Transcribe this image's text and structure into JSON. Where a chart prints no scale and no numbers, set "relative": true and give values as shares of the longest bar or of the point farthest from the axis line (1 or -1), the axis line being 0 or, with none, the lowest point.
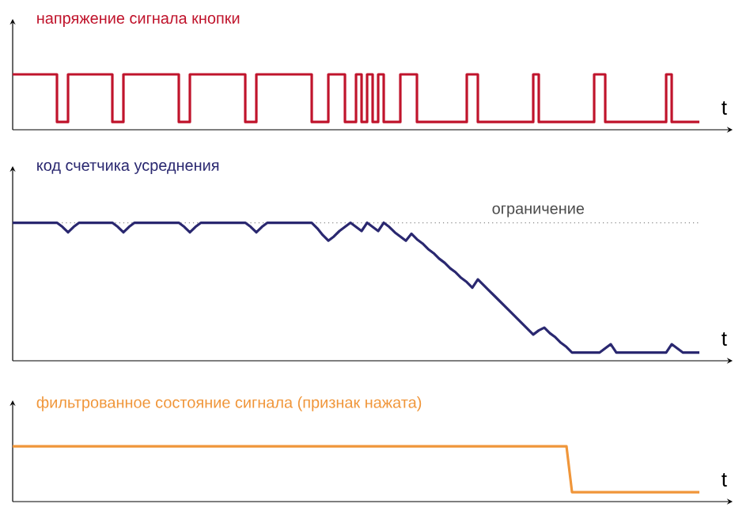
{
  "chart_data": [
    {
      "type": "step",
      "title": "напряжение сигнала кнопки",
      "xlabel": "t",
      "relative": true,
      "categories": [
        null,
        null,
        null,
        null,
        null,
        null,
        null,
        null,
        null,
        null,
        null,
        null,
        null,
        null,
        null,
        null,
        null,
        null,
        null,
        null,
        null,
        null,
        null,
        null,
        null,
        null,
        null,
        null,
        null,
        null,
        null,
        null,
        null,
        null,
        null,
        null,
        null,
        null,
        null,
        null,
        null,
        null,
        null,
        null,
        null,
        null,
        null,
        null,
        null,
        null,
        null,
        null,
        null,
        null,
        null,
        null,
        null,
        null,
        null,
        null,
        null,
        null,
        null,
        null,
        null,
        null,
        null,
        null,
        null,
        null,
        null,
        null,
        null,
        null,
        null,
        null,
        null,
        null,
        null,
        null,
        null,
        null,
        null,
        null,
        null,
        null,
        null,
        null,
        null,
        null,
        null,
        null,
        null,
        null,
        null,
        null,
        null,
        null,
        null,
        null,
        null,
        null,
        null,
        null,
        null,
        null,
        null,
        null,
        null,
        null,
        null,
        null,
        null,
        null,
        null,
        null,
        null,
        null,
        null,
        null,
        null,
        null,
        null,
        null,
        null,
        null,
        null,
        null,
        null,
        null,
        null
      ],
      "series": [
        {
          "color": "#c0142c",
          "values": [
            1,
            1,
            1,
            1,
            1,
            1,
            1,
            1,
            0.14,
            0.14,
            1,
            1,
            1,
            1,
            1,
            1,
            1,
            1,
            0.14,
            0.14,
            1,
            1,
            1,
            1,
            1,
            1,
            1,
            1,
            1,
            1,
            0.14,
            0.14,
            1,
            1,
            1,
            1,
            1,
            1,
            1,
            1,
            1,
            1,
            0.14,
            0.14,
            1,
            1,
            1,
            1,
            1,
            1,
            1,
            1,
            1,
            1,
            0.14,
            0.14,
            0.14,
            1,
            1,
            1,
            0.14,
            0.14,
            1,
            0.14,
            1,
            0.14,
            1,
            0.14,
            0.14,
            0.14,
            1,
            1,
            1,
            0.14,
            0.14,
            0.14,
            0.14,
            0.14,
            0.14,
            0.14,
            0.14,
            0.14,
            1,
            1,
            0.14,
            0.14,
            0.14,
            0.14,
            0.14,
            0.14,
            0.14,
            0.14,
            0.14,
            0.14,
            1,
            0.14,
            0.14,
            0.14,
            0.14,
            0.14,
            0.14,
            0.14,
            0.14,
            0.14,
            0.14,
            1,
            1,
            0.14,
            0.14,
            0.14,
            0.14,
            0.14,
            0.14,
            0.14,
            0.14,
            0.14,
            0.14,
            0.14,
            1,
            0.14,
            0.14,
            0.14,
            0.14,
            0.14,
            0.14,
            null,
            null,
            null,
            null,
            null,
            null
          ]
        }
      ]
    },
    {
      "type": "line",
      "title": "код счетчика усреднения",
      "xlabel": "t",
      "relative": true,
      "categories": [
        null,
        null,
        null,
        null,
        null,
        null,
        null,
        null,
        null,
        null,
        null,
        null,
        null,
        null,
        null,
        null,
        null,
        null,
        null,
        null,
        null,
        null,
        null,
        null,
        null,
        null,
        null,
        null,
        null,
        null,
        null,
        null,
        null,
        null,
        null,
        null,
        null,
        null,
        null,
        null,
        null,
        null,
        null,
        null,
        null,
        null,
        null,
        null,
        null,
        null,
        null,
        null,
        null,
        null,
        null,
        null,
        null,
        null,
        null,
        null,
        null,
        null,
        null,
        null,
        null,
        null,
        null,
        null,
        null,
        null,
        null,
        null,
        null,
        null,
        null,
        null,
        null,
        null,
        null,
        null,
        null,
        null,
        null,
        null,
        null,
        null,
        null,
        null,
        null,
        null,
        null,
        null,
        null,
        null,
        null,
        null,
        null,
        null,
        null,
        null,
        null,
        null,
        null,
        null,
        null,
        null,
        null,
        null,
        null,
        null,
        null,
        null,
        null,
        null,
        null,
        null,
        null,
        null,
        null,
        null,
        null,
        null,
        null,
        null,
        null,
        null,
        null,
        null,
        null,
        null,
        null
      ],
      "ref_lines": [
        {
          "axis": "y",
          "value": 1,
          "label": "ограничение",
          "color": "#888888",
          "line_style": "dotted"
        }
      ],
      "series": [
        {
          "color": "#2a2870",
          "values": [
            1,
            1,
            1,
            1,
            1,
            1,
            1,
            1,
            1,
            0.97,
            0.93,
            0.97,
            1,
            1,
            1,
            1,
            1,
            1,
            1,
            0.97,
            0.93,
            0.97,
            1,
            1,
            1,
            1,
            1,
            1,
            1,
            1,
            1,
            0.97,
            0.93,
            0.97,
            1,
            1,
            1,
            1,
            1,
            1,
            1,
            1,
            1,
            0.97,
            0.93,
            0.97,
            1,
            1,
            1,
            1,
            1,
            1,
            1,
            1,
            1,
            0.96,
            0.91,
            0.87,
            0.9,
            0.94,
            0.97,
            1,
            0.97,
            0.94,
            1,
            0.97,
            0.94,
            1,
            0.97,
            0.93,
            0.9,
            0.87,
            0.92,
            0.88,
            0.85,
            0.81,
            0.78,
            0.74,
            0.71,
            0.67,
            0.64,
            0.6,
            0.57,
            0.53,
            0.59,
            0.55,
            0.51,
            0.47,
            0.43,
            0.39,
            0.35,
            0.31,
            0.27,
            0.23,
            0.19,
            0.22,
            0.24,
            0.2,
            0.17,
            0.13,
            0.1,
            0.06,
            0.06,
            0.06,
            0.06,
            0.06,
            0.06,
            0.09,
            0.12,
            0.06,
            0.06,
            0.06,
            0.06,
            0.06,
            0.06,
            0.06,
            0.06,
            0.06,
            0.06,
            0.12,
            0.09,
            0.06,
            0.06,
            0.06,
            0.06,
            null,
            null,
            null,
            null,
            null,
            null
          ]
        }
      ]
    },
    {
      "type": "line",
      "title": "фильтрованное состояние сигнала (признак нажата)",
      "xlabel": "t",
      "relative": true,
      "categories": [
        null,
        null,
        null,
        null,
        null,
        null,
        null,
        null,
        null,
        null,
        null,
        null,
        null,
        null,
        null,
        null,
        null,
        null,
        null,
        null,
        null,
        null,
        null,
        null,
        null,
        null,
        null,
        null,
        null,
        null,
        null,
        null,
        null,
        null,
        null,
        null,
        null,
        null,
        null,
        null,
        null,
        null,
        null,
        null,
        null,
        null,
        null,
        null,
        null,
        null,
        null,
        null,
        null,
        null,
        null,
        null,
        null,
        null,
        null,
        null,
        null,
        null,
        null,
        null,
        null,
        null,
        null,
        null,
        null,
        null,
        null,
        null,
        null,
        null,
        null,
        null,
        null,
        null,
        null,
        null,
        null,
        null,
        null,
        null,
        null,
        null,
        null,
        null,
        null,
        null,
        null,
        null,
        null,
        null,
        null,
        null,
        null,
        null,
        null,
        null,
        null,
        null,
        null,
        null,
        null,
        null,
        null,
        null,
        null,
        null,
        null,
        null,
        null,
        null,
        null,
        null,
        null,
        null,
        null,
        null,
        null,
        null,
        null,
        null,
        null,
        null,
        null,
        null,
        null,
        null,
        null
      ],
      "series": [
        {
          "color": "#f0963a",
          "values": [
            1,
            1,
            1,
            1,
            1,
            1,
            1,
            1,
            1,
            1,
            1,
            1,
            1,
            1,
            1,
            1,
            1,
            1,
            1,
            1,
            1,
            1,
            1,
            1,
            1,
            1,
            1,
            1,
            1,
            1,
            1,
            1,
            1,
            1,
            1,
            1,
            1,
            1,
            1,
            1,
            1,
            1,
            1,
            1,
            1,
            1,
            1,
            1,
            1,
            1,
            1,
            1,
            1,
            1,
            1,
            1,
            1,
            1,
            1,
            1,
            1,
            1,
            1,
            1,
            1,
            1,
            1,
            1,
            1,
            1,
            1,
            1,
            1,
            1,
            1,
            1,
            1,
            1,
            1,
            1,
            1,
            1,
            1,
            1,
            1,
            1,
            1,
            1,
            1,
            1,
            1,
            1,
            1,
            1,
            1,
            1,
            1,
            1,
            1,
            1,
            1,
            0.17,
            0.17,
            0.17,
            0.17,
            0.17,
            0.17,
            0.17,
            0.17,
            0.17,
            0.17,
            0.17,
            0.17,
            0.17,
            0.17,
            0.17,
            0.17,
            0.17,
            0.17,
            0.17,
            0.17,
            0.17,
            0.17,
            0.17,
            0.17,
            null,
            null,
            null,
            null,
            null,
            null
          ]
        }
      ]
    }
  ]
}
